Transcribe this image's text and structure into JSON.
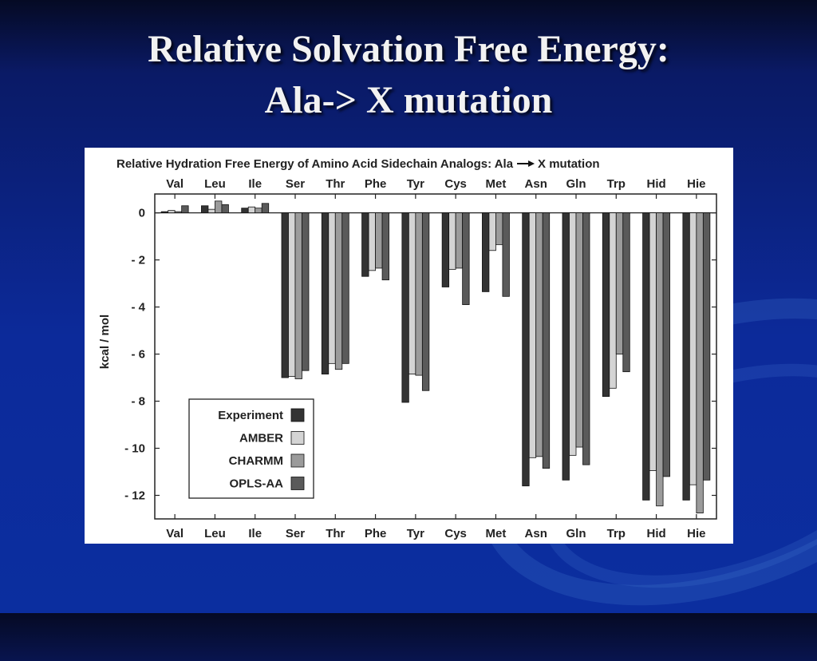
{
  "slide": {
    "title_line1": "Relative Solvation Free Energy:",
    "title_line2": "Ala-> X mutation"
  },
  "chart_data": {
    "type": "bar",
    "title_prefix": "Relative Hydration Free Energy of Amino Acid Sidechain Analogs: Ala",
    "title_suffix": "X mutation",
    "categories": [
      "Val",
      "Leu",
      "Ile",
      "Ser",
      "Thr",
      "Phe",
      "Tyr",
      "Cys",
      "Met",
      "Asn",
      "Gln",
      "Trp",
      "Hid",
      "Hie"
    ],
    "ylabel": "kcal / mol",
    "xlabel": "",
    "ylim": [
      -13,
      0.8
    ],
    "yticks": [
      0,
      -2,
      -4,
      -6,
      -8,
      -10,
      -12
    ],
    "grid": false,
    "legend_position": "bottom-left",
    "series": [
      {
        "name": "Experiment",
        "color": "#333333",
        "values": [
          0.05,
          0.3,
          0.2,
          -7.0,
          -6.85,
          -2.7,
          -8.05,
          -3.15,
          -3.35,
          -11.6,
          -11.35,
          -7.8,
          -12.2,
          -12.2
        ]
      },
      {
        "name": "AMBER",
        "color": "#d4d4d4",
        "values": [
          0.1,
          0.15,
          0.25,
          -6.95,
          -6.4,
          -2.45,
          -6.85,
          -2.4,
          -1.6,
          -10.4,
          -10.3,
          -7.45,
          -10.95,
          -11.55
        ]
      },
      {
        "name": "CHARMM",
        "color": "#9b9b9b",
        "values": [
          0.05,
          0.5,
          0.2,
          -7.05,
          -6.65,
          -2.35,
          -6.9,
          -2.35,
          -1.35,
          -10.35,
          -9.95,
          -6.0,
          -12.45,
          -12.75
        ]
      },
      {
        "name": "OPLS-AA",
        "color": "#5a5a5a",
        "values": [
          0.3,
          0.35,
          0.4,
          -6.7,
          -6.4,
          -2.85,
          -7.55,
          -3.9,
          -3.55,
          -10.85,
          -10.7,
          -6.75,
          -11.2,
          -11.35
        ]
      }
    ]
  }
}
